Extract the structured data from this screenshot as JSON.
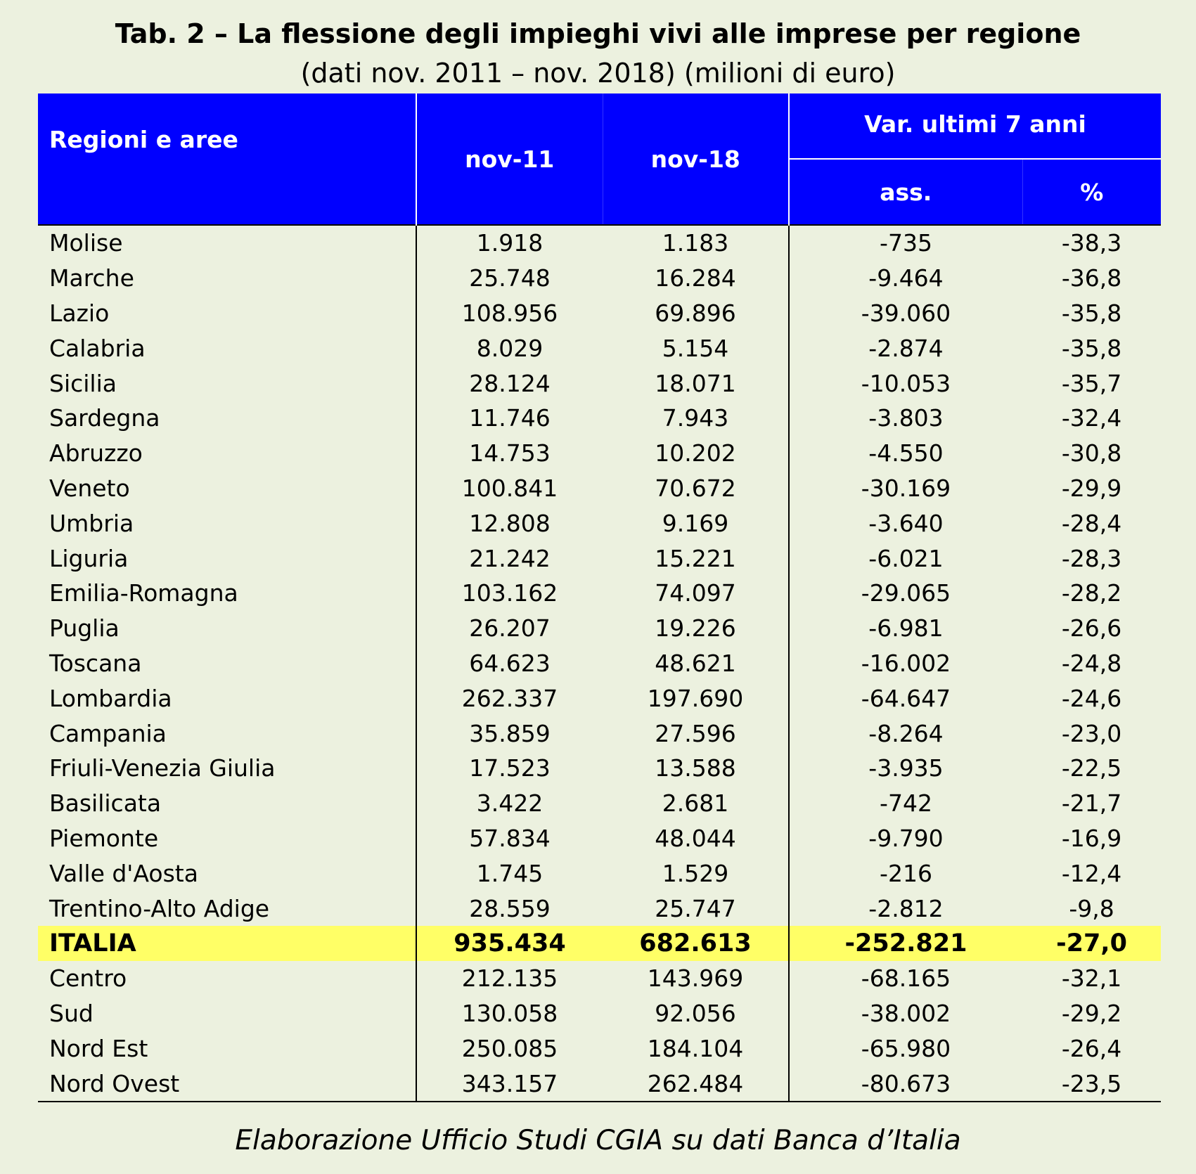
{
  "title": "Tab. 2 – La flessione degli impieghi vivi alle imprese per regione",
  "subtitle": "(dati nov. 2011 – nov. 2018) (milioni di euro)",
  "table": {
    "header": {
      "region": "Regioni e aree",
      "col1": "nov-11",
      "col2": "nov-18",
      "group": "Var. ultimi 7 anni",
      "abs": "ass.",
      "pct": "%"
    },
    "rows": [
      [
        "Molise",
        "1.918",
        "1.183",
        "-735",
        "-38,3"
      ],
      [
        "Marche",
        "25.748",
        "16.284",
        "-9.464",
        "-36,8"
      ],
      [
        "Lazio",
        "108.956",
        "69.896",
        "-39.060",
        "-35,8"
      ],
      [
        "Calabria",
        "8.029",
        "5.154",
        "-2.874",
        "-35,8"
      ],
      [
        "Sicilia",
        "28.124",
        "18.071",
        "-10.053",
        "-35,7"
      ],
      [
        "Sardegna",
        "11.746",
        "7.943",
        "-3.803",
        "-32,4"
      ],
      [
        "Abruzzo",
        "14.753",
        "10.202",
        "-4.550",
        "-30,8"
      ],
      [
        "Veneto",
        "100.841",
        "70.672",
        "-30.169",
        "-29,9"
      ],
      [
        "Umbria",
        "12.808",
        "9.169",
        "-3.640",
        "-28,4"
      ],
      [
        "Liguria",
        "21.242",
        "15.221",
        "-6.021",
        "-28,3"
      ],
      [
        "Emilia-Romagna",
        "103.162",
        "74.097",
        "-29.065",
        "-28,2"
      ],
      [
        "Puglia",
        "26.207",
        "19.226",
        "-6.981",
        "-26,6"
      ],
      [
        "Toscana",
        "64.623",
        "48.621",
        "-16.002",
        "-24,8"
      ],
      [
        "Lombardia",
        "262.337",
        "197.690",
        "-64.647",
        "-24,6"
      ],
      [
        "Campania",
        "35.859",
        "27.596",
        "-8.264",
        "-23,0"
      ],
      [
        "Friuli-Venezia Giulia",
        "17.523",
        "13.588",
        "-3.935",
        "-22,5"
      ],
      [
        "Basilicata",
        "3.422",
        "2.681",
        "-742",
        "-21,7"
      ],
      [
        "Piemonte",
        "57.834",
        "48.044",
        "-9.790",
        "-16,9"
      ],
      [
        "Valle d'Aosta",
        "1.745",
        "1.529",
        "-216",
        "-12,4"
      ],
      [
        "Trentino-Alto Adige",
        "28.559",
        "25.747",
        "-2.812",
        "-9,8"
      ]
    ],
    "total": [
      "ITALIA",
      "935.434",
      "682.613",
      "-252.821",
      "-27,0"
    ],
    "areas": [
      [
        "Centro",
        "212.135",
        "143.969",
        "-68.165",
        "-32,1"
      ],
      [
        "Sud",
        "130.058",
        "92.056",
        "-38.002",
        "-29,2"
      ],
      [
        "Nord Est",
        "250.085",
        "184.104",
        "-65.980",
        "-26,4"
      ],
      [
        "Nord Ovest",
        "343.157",
        "262.484",
        "-80.673",
        "-23,5"
      ]
    ]
  },
  "source": "Elaborazione Ufficio Studi CGIA su dati Banca d’Italia"
}
